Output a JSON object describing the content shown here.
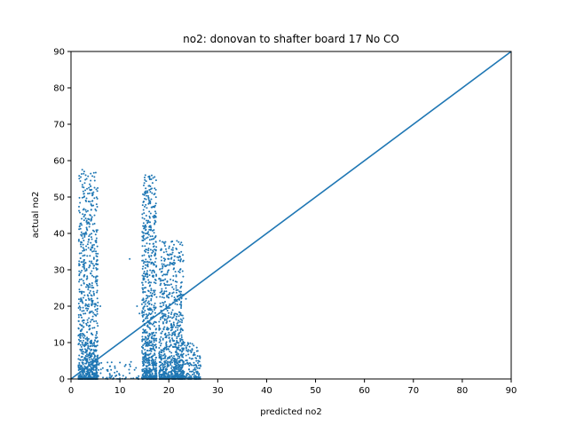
{
  "chart_data": {
    "type": "scatter",
    "title": "no2: donovan to shafter board 17 No CO",
    "xlabel": "predicted no2",
    "ylabel": "actual no2",
    "xlim": [
      0,
      90
    ],
    "ylim": [
      0,
      90
    ],
    "xticks": [
      0,
      10,
      20,
      30,
      40,
      50,
      60,
      70,
      80,
      90
    ],
    "yticks": [
      0,
      10,
      20,
      30,
      40,
      50,
      60,
      70,
      80,
      90
    ],
    "grid": false,
    "colors": {
      "points": "#1f77b4",
      "line": "#1f77b4"
    },
    "reference_line": {
      "x": [
        0,
        90
      ],
      "y": [
        0,
        90
      ]
    },
    "clusters": [
      {
        "x_range": [
          1.5,
          5.5
        ],
        "y_range": [
          0,
          57
        ],
        "count": 900
      },
      {
        "x_range": [
          14.5,
          17.5
        ],
        "y_range": [
          0,
          56
        ],
        "count": 750
      },
      {
        "x_range": [
          18,
          23
        ],
        "y_range": [
          0,
          38
        ],
        "count": 800
      },
      {
        "x_range": [
          21,
          26.5
        ],
        "y_range": [
          0,
          10
        ],
        "count": 250
      },
      {
        "x_range": [
          5,
          14
        ],
        "y_range": [
          0,
          5
        ],
        "count": 60
      }
    ],
    "points": [
      [
        2.3,
        57.5
      ],
      [
        2.7,
        57.0
      ],
      [
        3.0,
        56.0
      ],
      [
        2.0,
        55.5
      ],
      [
        3.2,
        55.0
      ],
      [
        15.2,
        56.0
      ],
      [
        16.0,
        48.5
      ],
      [
        4.0,
        53.0
      ],
      [
        4.2,
        52.0
      ],
      [
        3.8,
        51.0
      ],
      [
        2.5,
        46.5
      ],
      [
        2.8,
        45.0
      ],
      [
        4.3,
        44.5
      ],
      [
        3.5,
        44.0
      ],
      [
        15.5,
        47.0
      ],
      [
        16.0,
        46.0
      ],
      [
        15.0,
        44.0
      ],
      [
        16.3,
        45.5
      ],
      [
        15.8,
        43.5
      ],
      [
        16.1,
        42.0
      ],
      [
        16.0,
        41.0
      ],
      [
        15.7,
        40.0
      ],
      [
        2.2,
        37.5
      ],
      [
        3.1,
        36.5
      ],
      [
        4.0,
        35.5
      ],
      [
        2.8,
        34.0
      ],
      [
        12.0,
        33.0
      ],
      [
        17.0,
        36.5
      ],
      [
        19.0,
        37.5
      ],
      [
        19.5,
        35.0
      ],
      [
        20.0,
        34.0
      ],
      [
        18.5,
        33.5
      ],
      [
        20.5,
        33.0
      ],
      [
        21.0,
        32.0
      ],
      [
        19.0,
        31.5
      ],
      [
        22.0,
        29.5
      ],
      [
        21.5,
        28.5
      ],
      [
        18.0,
        27.5
      ],
      [
        20.5,
        26.0
      ],
      [
        21.5,
        25.0
      ],
      [
        22.5,
        24.0
      ],
      [
        16.5,
        23.0
      ],
      [
        17.5,
        22.5
      ],
      [
        13.5,
        20.0
      ],
      [
        14.0,
        18.0
      ],
      [
        6.0,
        20.0
      ],
      [
        5.5,
        21.0
      ],
      [
        5.0,
        19.0
      ],
      [
        23.0,
        23.0
      ],
      [
        23.5,
        22.0
      ],
      [
        22.5,
        21.0
      ],
      [
        24.0,
        8.0
      ],
      [
        25.0,
        6.5
      ],
      [
        26.0,
        5.0
      ],
      [
        26.5,
        3.5
      ],
      [
        25.5,
        2.5
      ],
      [
        10.0,
        4.5
      ],
      [
        11.0,
        3.5
      ],
      [
        12.0,
        4.0
      ],
      [
        9.0,
        3.0
      ],
      [
        13.0,
        2.5
      ],
      [
        6.5,
        3.0
      ],
      [
        7.5,
        2.5
      ],
      [
        8.0,
        3.5
      ]
    ]
  }
}
